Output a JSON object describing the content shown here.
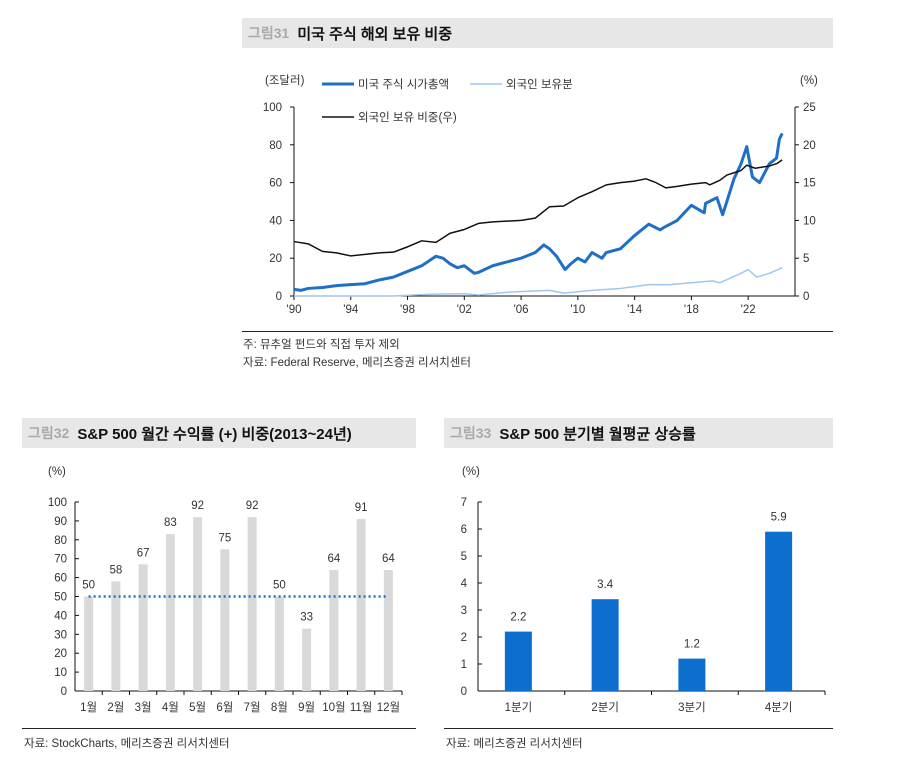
{
  "figures": [
    {
      "number": "그림31",
      "title": "미국 주식 해외 보유 비중",
      "note": "주: 뮤추얼 펀드와 직접 투자 제외",
      "source": "자료: Federal Reserve, 메리츠증권 리서치센터"
    },
    {
      "number": "그림32",
      "title": "S&P 500 월간 수익률 (+) 비중(2013~24년)",
      "source": "자료: StockCharts, 메리츠증권 리서치센터"
    },
    {
      "number": "그림33",
      "title": "S&P 500 분기별 월평균 상승률",
      "source": "자료: 메리츠증권 리서치센터"
    }
  ],
  "chart_data": [
    {
      "type": "line",
      "left_unit": "(조달러)",
      "right_unit": "(%)",
      "xlim": [
        1990,
        2025.3
      ],
      "ylim": [
        0,
        100
      ],
      "y2lim": [
        0,
        25
      ],
      "x_ticks": [
        {
          "v": 1990,
          "l": "'90"
        },
        {
          "v": 1994,
          "l": "'94"
        },
        {
          "v": 1998,
          "l": "'98"
        },
        {
          "v": 2002,
          "l": "'02"
        },
        {
          "v": 2006,
          "l": "'06"
        },
        {
          "v": 2010,
          "l": "'10"
        },
        {
          "v": 2014,
          "l": "'14"
        },
        {
          "v": 2018,
          "l": "'18"
        },
        {
          "v": 2022,
          "l": "'22"
        }
      ],
      "y_ticks": [
        "0",
        "20",
        "40",
        "60",
        "80",
        "100"
      ],
      "y2_ticks": [
        "0",
        "5",
        "10",
        "15",
        "20",
        "25"
      ],
      "legend_placement": "top-left",
      "grid": false,
      "series": [
        {
          "name": "미국 주식 시가총액",
          "axis": "left",
          "color": "#1f6fc5",
          "width": 3,
          "x": [
            1990,
            1990.5,
            1991,
            1992,
            1993,
            1994,
            1995,
            1996,
            1997,
            1998,
            1999,
            2000,
            2000.5,
            2001,
            2001.5,
            2002,
            2002.7,
            2003,
            2004,
            2005,
            2006,
            2007,
            2007.6,
            2008,
            2008.5,
            2009.1,
            2009.5,
            2010,
            2010.5,
            2011,
            2011.7,
            2012,
            2013,
            2014,
            2014.5,
            2015,
            2015.8,
            2016,
            2017,
            2018,
            2018.9,
            2019,
            2019.8,
            2020.2,
            2020.5,
            2021,
            2021.5,
            2021.9,
            2022.3,
            2022.8,
            2023.5,
            2024,
            2024.2,
            2024.4
          ],
          "y": [
            3.5,
            3,
            4,
            4.5,
            5.5,
            6,
            6.5,
            8.5,
            10,
            13,
            16,
            21,
            20,
            17,
            15,
            16,
            12,
            12.5,
            16,
            18,
            20,
            23,
            27,
            25,
            21,
            14,
            17,
            20,
            18,
            23,
            20,
            23,
            25,
            32,
            35,
            38,
            35,
            36,
            40,
            48,
            44,
            49,
            52,
            43,
            50,
            62,
            70,
            79,
            63,
            60,
            70,
            73,
            83,
            86
          ]
        },
        {
          "name": "외국인 보유분",
          "axis": "left",
          "color": "#9fc7ef",
          "width": 1.5,
          "x": [
            1990,
            1997,
            1999,
            2000,
            2002,
            2003,
            2005,
            2008,
            2009,
            2011,
            2013,
            2015,
            2016.5,
            2018,
            2019.5,
            2020,
            2021.5,
            2022,
            2022.6,
            2023.5,
            2024.4
          ],
          "y": [
            0,
            0,
            0.7,
            1,
            1.2,
            0.5,
            2,
            3,
            1.5,
            3,
            4,
            6,
            6,
            7,
            8,
            7,
            12,
            14,
            10,
            12,
            15
          ]
        },
        {
          "name": "외국인 보유 비중(우)",
          "axis": "right",
          "color": "#111111",
          "width": 1.5,
          "x": [
            1990,
            1991,
            1992,
            1993,
            1994,
            1995,
            1996,
            1997,
            1998,
            1999,
            2000,
            2001,
            2002,
            2003,
            2004,
            2005,
            2006,
            2007,
            2008,
            2009,
            2010,
            2011,
            2012,
            2013,
            2014,
            2014.8,
            2015.5,
            2016.2,
            2017,
            2018,
            2019,
            2019.3,
            2020,
            2020.5,
            2021,
            2021.5,
            2021.9,
            2022.5,
            2023.5,
            2024,
            2024.4
          ],
          "y": [
            7.2,
            6.9,
            5.9,
            5.7,
            5.3,
            5.5,
            5.7,
            5.8,
            6.5,
            7.3,
            7.1,
            8.3,
            8.8,
            9.6,
            9.8,
            9.9,
            10,
            10.3,
            11.8,
            11.9,
            13,
            13.8,
            14.7,
            15,
            15.2,
            15.5,
            15,
            14.3,
            14.5,
            14.8,
            15,
            14.7,
            15.3,
            16,
            16.3,
            16.6,
            17.3,
            16.9,
            17.2,
            17.5,
            18
          ]
        }
      ]
    },
    {
      "type": "bar",
      "unit": "(%)",
      "ylim": [
        0,
        100
      ],
      "y_ticks": [
        "0",
        "10",
        "20",
        "30",
        "40",
        "50",
        "60",
        "70",
        "80",
        "90",
        "100"
      ],
      "categories": [
        "1월",
        "2월",
        "3월",
        "4월",
        "5월",
        "6월",
        "7월",
        "8월",
        "9월",
        "10월",
        "11월",
        "12월"
      ],
      "values": [
        50,
        58,
        67,
        83,
        92,
        75,
        92,
        50,
        33,
        64,
        91,
        64
      ],
      "bar_color": "#d9d9d9",
      "reference_line": 50,
      "reference_color": "#1f6fc5"
    },
    {
      "type": "bar",
      "unit": "(%)",
      "ylim": [
        0,
        7
      ],
      "y_ticks": [
        "0",
        "1",
        "2",
        "3",
        "4",
        "5",
        "6",
        "7"
      ],
      "categories": [
        "1분기",
        "2분기",
        "3분기",
        "4분기"
      ],
      "values": [
        2.2,
        3.4,
        1.2,
        5.9
      ],
      "value_labels": [
        "2.2",
        "3.4",
        "1.2",
        "5.9"
      ],
      "bar_color": "#0d6ecd"
    }
  ]
}
